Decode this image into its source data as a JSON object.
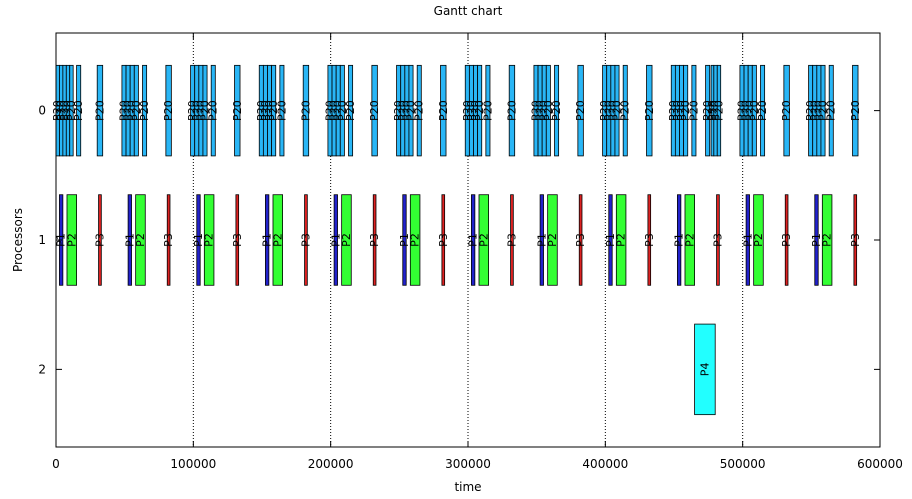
{
  "chart_data": {
    "type": "gantt",
    "title": "Gantt chart",
    "xlabel": "time",
    "ylabel": "Processors",
    "xlim": [
      0,
      600000
    ],
    "ylim": [
      2.6,
      -0.6
    ],
    "x_ticks": [
      0,
      100000,
      200000,
      300000,
      400000,
      500000,
      600000
    ],
    "x_tick_labels": [
      "0",
      "100000",
      "200000",
      "300000",
      "400000",
      "500000",
      "600000"
    ],
    "y_ticks": [
      0,
      1,
      2
    ],
    "y_tick_labels": [
      "0",
      "1",
      "2"
    ],
    "grid": "vertical dotted at x ticks",
    "colors": {
      "P20": "#29b6f6",
      "P1": "#2222cc",
      "P2": "#33ff33",
      "P3": "#dd2222",
      "P4": "#22ffff"
    },
    "tasks": [
      {
        "label": "P20",
        "processor": 0,
        "start": 0,
        "end": 2500
      },
      {
        "label": "P20",
        "processor": 0,
        "start": 2500,
        "end": 5000
      },
      {
        "label": "P20",
        "processor": 0,
        "start": 5000,
        "end": 7500
      },
      {
        "label": "P20",
        "processor": 0,
        "start": 7500,
        "end": 10000
      },
      {
        "label": "P20",
        "processor": 0,
        "start": 10000,
        "end": 12500
      },
      {
        "label": "P20",
        "processor": 0,
        "start": 15000,
        "end": 18000
      },
      {
        "label": "P20",
        "processor": 0,
        "start": 30000,
        "end": 34000
      },
      {
        "label": "P20",
        "processor": 0,
        "start": 48000,
        "end": 51000
      },
      {
        "label": "P20",
        "processor": 0,
        "start": 51000,
        "end": 54000
      },
      {
        "label": "P20",
        "processor": 0,
        "start": 54000,
        "end": 57000
      },
      {
        "label": "P20",
        "processor": 0,
        "start": 57000,
        "end": 60000
      },
      {
        "label": "P20",
        "processor": 0,
        "start": 63000,
        "end": 66000
      },
      {
        "label": "P20",
        "processor": 0,
        "start": 80000,
        "end": 84000
      },
      {
        "label": "P20",
        "processor": 0,
        "start": 98000,
        "end": 101000
      },
      {
        "label": "P20",
        "processor": 0,
        "start": 101000,
        "end": 104000
      },
      {
        "label": "P20",
        "processor": 0,
        "start": 104000,
        "end": 107000
      },
      {
        "label": "P20",
        "processor": 0,
        "start": 107000,
        "end": 110000
      },
      {
        "label": "P20",
        "processor": 0,
        "start": 113000,
        "end": 116000
      },
      {
        "label": "P20",
        "processor": 0,
        "start": 130000,
        "end": 134000
      },
      {
        "label": "P20",
        "processor": 0,
        "start": 148000,
        "end": 151000
      },
      {
        "label": "P20",
        "processor": 0,
        "start": 151000,
        "end": 154000
      },
      {
        "label": "P20",
        "processor": 0,
        "start": 154000,
        "end": 157000
      },
      {
        "label": "P20",
        "processor": 0,
        "start": 157000,
        "end": 160000
      },
      {
        "label": "P20",
        "processor": 0,
        "start": 163000,
        "end": 166000
      },
      {
        "label": "P20",
        "processor": 0,
        "start": 180000,
        "end": 184000
      },
      {
        "label": "P20",
        "processor": 0,
        "start": 198000,
        "end": 201000
      },
      {
        "label": "P20",
        "processor": 0,
        "start": 201000,
        "end": 204000
      },
      {
        "label": "P20",
        "processor": 0,
        "start": 204000,
        "end": 207000
      },
      {
        "label": "P20",
        "processor": 0,
        "start": 207000,
        "end": 210000
      },
      {
        "label": "P20",
        "processor": 0,
        "start": 213000,
        "end": 216000
      },
      {
        "label": "P20",
        "processor": 0,
        "start": 230000,
        "end": 234000
      },
      {
        "label": "P20",
        "processor": 0,
        "start": 248000,
        "end": 251000
      },
      {
        "label": "P20",
        "processor": 0,
        "start": 251000,
        "end": 254000
      },
      {
        "label": "P20",
        "processor": 0,
        "start": 254000,
        "end": 257000
      },
      {
        "label": "P20",
        "processor": 0,
        "start": 257000,
        "end": 260000
      },
      {
        "label": "P20",
        "processor": 0,
        "start": 263000,
        "end": 266000
      },
      {
        "label": "P20",
        "processor": 0,
        "start": 280000,
        "end": 284000
      },
      {
        "label": "P20",
        "processor": 0,
        "start": 298000,
        "end": 301000
      },
      {
        "label": "P20",
        "processor": 0,
        "start": 301000,
        "end": 304000
      },
      {
        "label": "P20",
        "processor": 0,
        "start": 304000,
        "end": 307000
      },
      {
        "label": "P20",
        "processor": 0,
        "start": 307000,
        "end": 310000
      },
      {
        "label": "P20",
        "processor": 0,
        "start": 313000,
        "end": 316000
      },
      {
        "label": "P20",
        "processor": 0,
        "start": 330000,
        "end": 334000
      },
      {
        "label": "P20",
        "processor": 0,
        "start": 348000,
        "end": 351000
      },
      {
        "label": "P20",
        "processor": 0,
        "start": 351000,
        "end": 354000
      },
      {
        "label": "P20",
        "processor": 0,
        "start": 354000,
        "end": 357000
      },
      {
        "label": "P20",
        "processor": 0,
        "start": 357000,
        "end": 360000
      },
      {
        "label": "P20",
        "processor": 0,
        "start": 363000,
        "end": 366000
      },
      {
        "label": "P20",
        "processor": 0,
        "start": 380000,
        "end": 384000
      },
      {
        "label": "P20",
        "processor": 0,
        "start": 398000,
        "end": 401000
      },
      {
        "label": "P20",
        "processor": 0,
        "start": 401000,
        "end": 404000
      },
      {
        "label": "P20",
        "processor": 0,
        "start": 404000,
        "end": 407000
      },
      {
        "label": "P20",
        "processor": 0,
        "start": 407000,
        "end": 410000
      },
      {
        "label": "P20",
        "processor": 0,
        "start": 413000,
        "end": 416000
      },
      {
        "label": "P20",
        "processor": 0,
        "start": 430000,
        "end": 434000
      },
      {
        "label": "P20",
        "processor": 0,
        "start": 448000,
        "end": 451000
      },
      {
        "label": "P20",
        "processor": 0,
        "start": 451000,
        "end": 454000
      },
      {
        "label": "P20",
        "processor": 0,
        "start": 454000,
        "end": 457000
      },
      {
        "label": "P20",
        "processor": 0,
        "start": 457000,
        "end": 460000
      },
      {
        "label": "P20",
        "processor": 0,
        "start": 463000,
        "end": 466000
      },
      {
        "label": "P20",
        "processor": 0,
        "start": 473000,
        "end": 476000
      },
      {
        "label": "P20",
        "processor": 0,
        "start": 477000,
        "end": 479000
      },
      {
        "label": "P20",
        "processor": 0,
        "start": 479000,
        "end": 481500
      },
      {
        "label": "P20",
        "processor": 0,
        "start": 481500,
        "end": 484000
      },
      {
        "label": "P20",
        "processor": 0,
        "start": 498000,
        "end": 501000
      },
      {
        "label": "P20",
        "processor": 0,
        "start": 501000,
        "end": 504000
      },
      {
        "label": "P20",
        "processor": 0,
        "start": 504000,
        "end": 507000
      },
      {
        "label": "P20",
        "processor": 0,
        "start": 507000,
        "end": 510000
      },
      {
        "label": "P20",
        "processor": 0,
        "start": 513000,
        "end": 516000
      },
      {
        "label": "P20",
        "processor": 0,
        "start": 530000,
        "end": 534000
      },
      {
        "label": "P20",
        "processor": 0,
        "start": 548000,
        "end": 551000
      },
      {
        "label": "P20",
        "processor": 0,
        "start": 551000,
        "end": 554000
      },
      {
        "label": "P20",
        "processor": 0,
        "start": 554000,
        "end": 557000
      },
      {
        "label": "P20",
        "processor": 0,
        "start": 557000,
        "end": 560000
      },
      {
        "label": "P20",
        "processor": 0,
        "start": 563000,
        "end": 566000
      },
      {
        "label": "P20",
        "processor": 0,
        "start": 580000,
        "end": 584000
      },
      {
        "label": "P1",
        "processor": 1,
        "start": 2500,
        "end": 5000
      },
      {
        "label": "P2",
        "processor": 1,
        "start": 8000,
        "end": 15000
      },
      {
        "label": "P3",
        "processor": 1,
        "start": 31000,
        "end": 33000
      },
      {
        "label": "P1",
        "processor": 1,
        "start": 52500,
        "end": 55000
      },
      {
        "label": "P2",
        "processor": 1,
        "start": 58000,
        "end": 65000
      },
      {
        "label": "P3",
        "processor": 1,
        "start": 81000,
        "end": 83000
      },
      {
        "label": "P1",
        "processor": 1,
        "start": 102500,
        "end": 105000
      },
      {
        "label": "P2",
        "processor": 1,
        "start": 108000,
        "end": 115000
      },
      {
        "label": "P3",
        "processor": 1,
        "start": 131000,
        "end": 133000
      },
      {
        "label": "P1",
        "processor": 1,
        "start": 152500,
        "end": 155000
      },
      {
        "label": "P2",
        "processor": 1,
        "start": 158000,
        "end": 165000
      },
      {
        "label": "P3",
        "processor": 1,
        "start": 181000,
        "end": 183000
      },
      {
        "label": "P1",
        "processor": 1,
        "start": 202500,
        "end": 205000
      },
      {
        "label": "P2",
        "processor": 1,
        "start": 208000,
        "end": 215000
      },
      {
        "label": "P3",
        "processor": 1,
        "start": 231000,
        "end": 233000
      },
      {
        "label": "P1",
        "processor": 1,
        "start": 252500,
        "end": 255000
      },
      {
        "label": "P2",
        "processor": 1,
        "start": 258000,
        "end": 265000
      },
      {
        "label": "P3",
        "processor": 1,
        "start": 281000,
        "end": 283000
      },
      {
        "label": "P1",
        "processor": 1,
        "start": 302500,
        "end": 305000
      },
      {
        "label": "P2",
        "processor": 1,
        "start": 308000,
        "end": 315000
      },
      {
        "label": "P3",
        "processor": 1,
        "start": 331000,
        "end": 333000
      },
      {
        "label": "P1",
        "processor": 1,
        "start": 352500,
        "end": 355000
      },
      {
        "label": "P2",
        "processor": 1,
        "start": 358000,
        "end": 365000
      },
      {
        "label": "P3",
        "processor": 1,
        "start": 381000,
        "end": 383000
      },
      {
        "label": "P1",
        "processor": 1,
        "start": 402500,
        "end": 405000
      },
      {
        "label": "P2",
        "processor": 1,
        "start": 408000,
        "end": 415000
      },
      {
        "label": "P3",
        "processor": 1,
        "start": 431000,
        "end": 433000
      },
      {
        "label": "P1",
        "processor": 1,
        "start": 452500,
        "end": 455000
      },
      {
        "label": "P2",
        "processor": 1,
        "start": 458000,
        "end": 465000
      },
      {
        "label": "P3",
        "processor": 1,
        "start": 481000,
        "end": 483000
      },
      {
        "label": "P1",
        "processor": 1,
        "start": 502500,
        "end": 505000
      },
      {
        "label": "P2",
        "processor": 1,
        "start": 508000,
        "end": 515000
      },
      {
        "label": "P3",
        "processor": 1,
        "start": 531000,
        "end": 533000
      },
      {
        "label": "P1",
        "processor": 1,
        "start": 552500,
        "end": 555000
      },
      {
        "label": "P2",
        "processor": 1,
        "start": 558000,
        "end": 565000
      },
      {
        "label": "P3",
        "processor": 1,
        "start": 581000,
        "end": 583000
      },
      {
        "label": "P4",
        "processor": 2,
        "start": 465000,
        "end": 480000
      }
    ]
  }
}
